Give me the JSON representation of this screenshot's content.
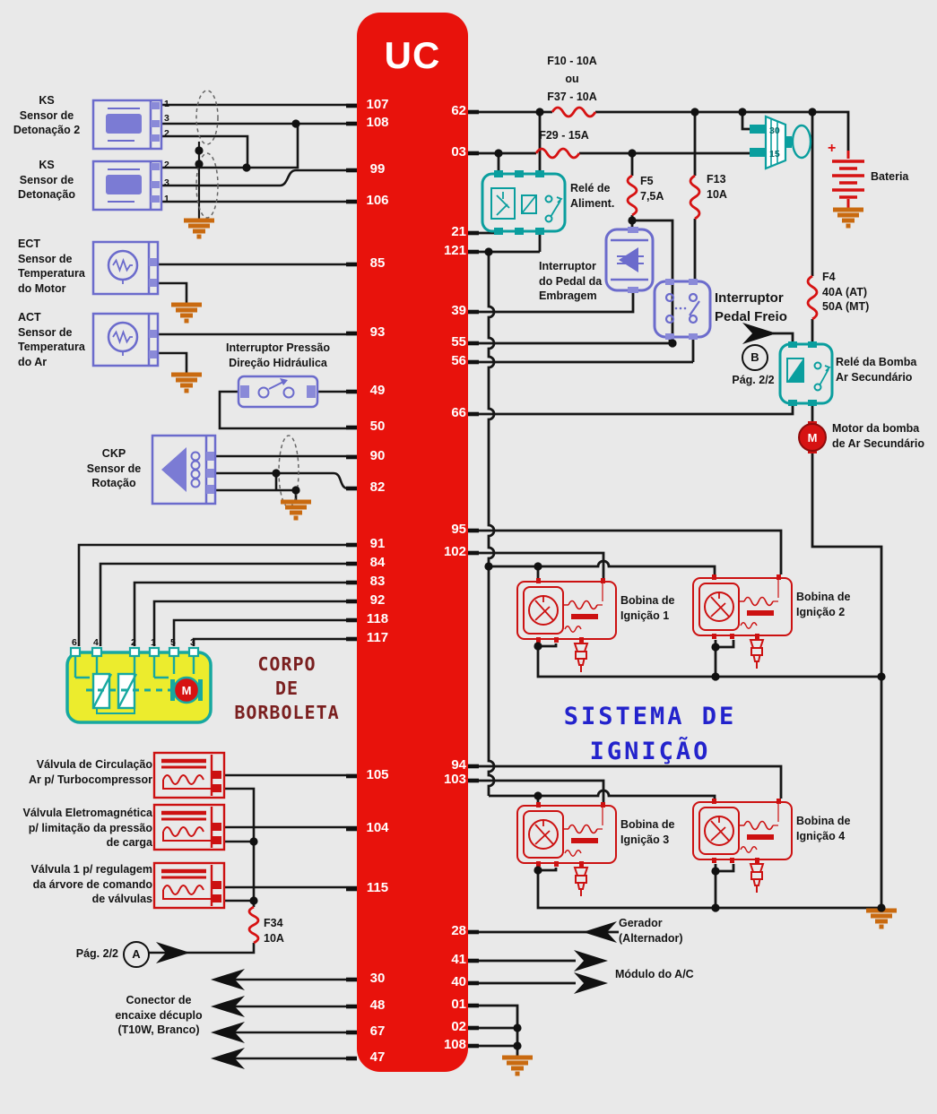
{
  "uc": {
    "label": "UC",
    "left_pins": [
      "107",
      "108",
      "99",
      "106",
      "85",
      "93",
      "49",
      "50",
      "90",
      "82",
      "91",
      "84",
      "83",
      "92",
      "118",
      "117",
      "105",
      "104",
      "115",
      "30",
      "48",
      "67",
      "47"
    ],
    "right_pins": [
      "62",
      "03",
      "21",
      "121",
      "39",
      "55",
      "56",
      "66",
      "95",
      "102",
      "94",
      "103",
      "28",
      "41",
      "40",
      "01",
      "02",
      "108"
    ]
  },
  "sensors": {
    "ks2": {
      "label": "KS\nSensor de\nDetonação 2",
      "pins": [
        "1",
        "3",
        "2"
      ]
    },
    "ks1": {
      "label": "KS\nSensor de\nDetonação",
      "pins": [
        "2",
        "3",
        "1"
      ]
    },
    "ect": {
      "label": "ECT\nSensor de\nTemperatura\ndo Motor"
    },
    "act": {
      "label": "ACT\nSensor de\nTemperatura\ndo Ar"
    },
    "ckp": {
      "label": "CKP\nSensor de\nRotação"
    },
    "hydraulic": {
      "label": "Interruptor Pressão\nDireção Hidráulica"
    }
  },
  "throttle": {
    "title": "CORPO\nDE\nBORBOLETA",
    "pins": [
      "6",
      "4",
      "2",
      "1",
      "5",
      "3"
    ],
    "motor_letter": "M"
  },
  "valves": [
    {
      "label": "Válvula de Circulação\nAr p/ Turbocompressor"
    },
    {
      "label": "Válvula Eletromagnética\np/ limitação da pressão\nde carga"
    },
    {
      "label": "Válvula 1 p/ regulagem\nda árvore de comando\nde válvulas"
    }
  ],
  "fuses": {
    "f10": "F10 - 10A\nou\nF37 - 10A",
    "f29": "F29 - 15A",
    "f5": "F5\n7,5A",
    "f13": "F13\n10A",
    "f4": "F4\n40A (AT)\n50A (MT)",
    "f34": "F34\n10A"
  },
  "relays": {
    "aliment": "Relé de\nAliment.",
    "bomba": "Relé da Bomba\nAr Secundário"
  },
  "switches": {
    "embragem": "Interruptor\ndo Pedal da\nEmbragem",
    "freio": "Interruptor\nPedal Freio",
    "ignition_terminals": [
      "30",
      "15"
    ]
  },
  "battery": {
    "label": "Bateria",
    "plus": "+"
  },
  "motor_bomba": {
    "label": "Motor da bomba\nde Ar Secundário",
    "letter": "M"
  },
  "ignition": {
    "title": "SISTEMA DE\nIGNIÇÃO",
    "coils": [
      "Bobina de\nIgnição 1",
      "Bobina de\nIgnição 2",
      "Bobina de\nIgnição 3",
      "Bobina de\nIgnição 4"
    ]
  },
  "page_refs": {
    "a": {
      "circle": "A",
      "label": "Pág. 2/2"
    },
    "b": {
      "circle": "B",
      "label": "Pág. 2/2"
    }
  },
  "external": {
    "gerador": "Gerador\n(Alternador)",
    "modulo_ac": "Módulo do A/C",
    "conector": "Conector de\nencaixe décuplo\n(T10W, Branco)"
  },
  "colors": {
    "uc_red": "#e8120c",
    "component_red": "#cc1111",
    "purple": "#6b6bcc",
    "teal": "#0a9e9e",
    "ground_orange": "#c96a10",
    "blue_text": "#2323cc",
    "dark_red_text": "#7a1f1f",
    "wire": "#161616",
    "throttle_yellow": "#ecec2d"
  }
}
